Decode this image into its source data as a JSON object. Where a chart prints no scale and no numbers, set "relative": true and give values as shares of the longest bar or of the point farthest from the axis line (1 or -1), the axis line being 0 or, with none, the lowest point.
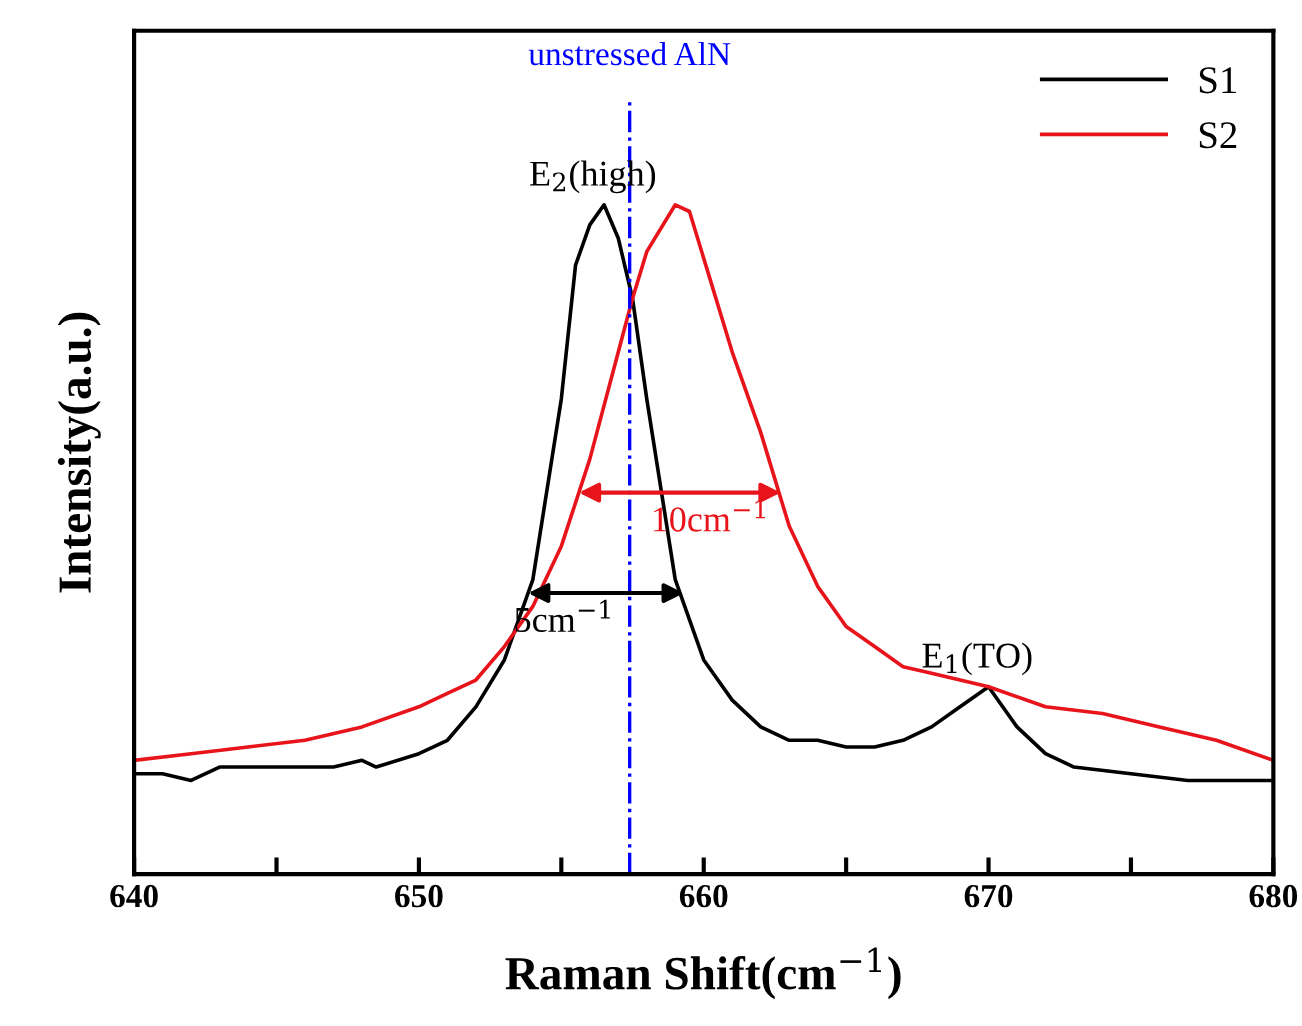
{
  "chart_data": {
    "type": "line",
    "relative": true,
    "xlabel": "Raman Shift(cm$^{−1}$)",
    "ylabel": "Intensity(a.u.)",
    "xlim": [
      640,
      680
    ],
    "xticks": [
      640,
      {
        "value": 645,
        "label": null
      },
      650,
      {
        "value": 655,
        "label": null
      },
      660,
      {
        "value": 665,
        "label": null
      },
      670,
      {
        "value": 675,
        "label": null
      },
      680
    ],
    "tick_labels": "x",
    "legend": "top right",
    "grid": false,
    "series": [
      {
        "name": "S1",
        "color": "#000000",
        "x": [
          640,
          641,
          642,
          643,
          645,
          647,
          648,
          648.5,
          650,
          651,
          652,
          653,
          654,
          655,
          655.5,
          656,
          656.5,
          657,
          657.5,
          658,
          659,
          660,
          661,
          662,
          663,
          664,
          665,
          666,
          667,
          668,
          669,
          670,
          671,
          672,
          673,
          675,
          677,
          679,
          680
        ],
        "values": [
          0.15,
          0.15,
          0.14,
          0.16,
          0.16,
          0.16,
          0.17,
          0.16,
          0.18,
          0.2,
          0.25,
          0.32,
          0.44,
          0.71,
          0.91,
          0.97,
          1.0,
          0.95,
          0.86,
          0.71,
          0.44,
          0.32,
          0.26,
          0.22,
          0.2,
          0.2,
          0.19,
          0.19,
          0.2,
          0.22,
          0.25,
          0.28,
          0.22,
          0.18,
          0.16,
          0.15,
          0.14,
          0.14,
          0.14
        ]
      },
      {
        "name": "S2",
        "color": "#e8141b",
        "x": [
          640,
          642,
          644,
          646,
          648,
          650,
          651,
          652,
          653,
          654,
          655,
          656,
          657,
          657.5,
          658,
          659,
          659.5,
          660,
          661,
          662,
          663,
          664,
          665,
          666,
          667,
          668,
          669,
          670,
          672,
          674,
          676,
          678,
          680
        ],
        "values": [
          0.17,
          0.18,
          0.19,
          0.2,
          0.22,
          0.25,
          0.27,
          0.29,
          0.34,
          0.4,
          0.49,
          0.62,
          0.78,
          0.86,
          0.93,
          1.0,
          0.99,
          0.92,
          0.78,
          0.66,
          0.52,
          0.43,
          0.37,
          0.34,
          0.31,
          0.3,
          0.29,
          0.28,
          0.25,
          0.24,
          0.22,
          0.2,
          0.17
        ]
      }
    ],
    "ref_lines": [
      {
        "axis": "x",
        "value": 657.4,
        "label": "unstressed AlN",
        "color": "#0000ff",
        "line_style": "dashdot"
      }
    ],
    "annotations": [
      {
        "text": "E$_{2}$(high)",
        "x": 656.5,
        "y": 1.0
      },
      {
        "text": "E$_{1}$(TO)",
        "x": 670,
        "y": 0.28
      },
      {
        "text": "5cm$^{−1}$",
        "x": 659.3,
        "y": 0.42
      },
      {
        "text": "10cm$^{−1}$",
        "x": 662.7,
        "y": 0.57
      }
    ]
  }
}
